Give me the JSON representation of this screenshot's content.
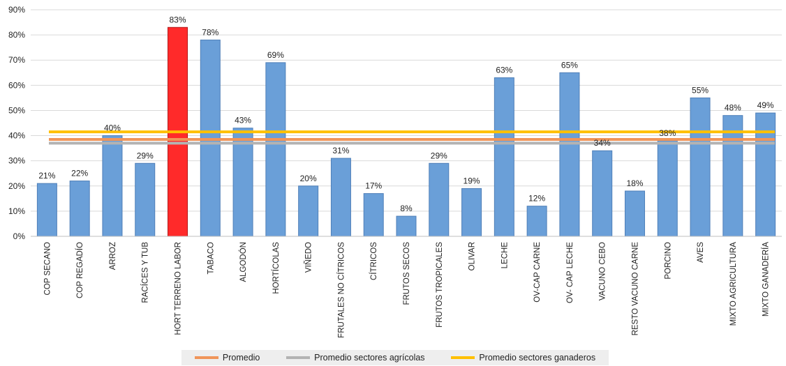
{
  "chart_data": {
    "type": "bar",
    "categories": [
      "COP SECANO",
      "COP REGADÍO",
      "ARROZ",
      "RACÍCES Y TUB",
      "HORT TERRENO LABOR",
      "TABACO",
      "ALGODÓN",
      "HORTÍCOLAS",
      "VIÑEDO",
      "FRUTALES NO CÍTRICOS",
      "CÍTRICOS",
      "FRUTOS SECOS",
      "FRUTOS TROPICALES",
      "OLIVAR",
      "LECHE",
      "OV-CAP CARNE",
      "OV- CAP LECHE",
      "VACUNO CEBO",
      "RESTO VACUNO CARNE",
      "PORCINO",
      "AVES",
      "MIXTO AGRICULTURA",
      "MIXTO GANADERÍA"
    ],
    "values": [
      21,
      22,
      40,
      29,
      83,
      78,
      43,
      69,
      20,
      31,
      17,
      8,
      29,
      19,
      63,
      12,
      65,
      34,
      18,
      38,
      55,
      48,
      49
    ],
    "data_labels": [
      "21%",
      "22%",
      "40%",
      "29%",
      "83%",
      "78%",
      "43%",
      "69%",
      "20%",
      "31%",
      "17%",
      "8%",
      "29%",
      "19%",
      "63%",
      "12%",
      "65%",
      "34%",
      "18%",
      "38%",
      "55%",
      "48%",
      "49%"
    ],
    "highlight_index": 4,
    "ylim": [
      0,
      90
    ],
    "yticks": [
      "0%",
      "10%",
      "20%",
      "30%",
      "40%",
      "50%",
      "60%",
      "70%",
      "80%",
      "90%"
    ],
    "grid": true,
    "bar_color": "#6a9fd8",
    "bar_edge_color": "#4f7fb8",
    "highlight_color": "#ff2a2a",
    "reference_lines": [
      {
        "name": "Promedio",
        "value": 38.5,
        "color": "#f0955a"
      },
      {
        "name": "Promedio sectores agrícolas",
        "value": 37,
        "color": "#b3b3b3"
      },
      {
        "name": "Promedio sectores ganaderos",
        "value": 41.5,
        "color": "#ffc000"
      }
    ],
    "legend_position": "bottom"
  },
  "legend": [
    {
      "label": "Promedio",
      "color": "#f0955a"
    },
    {
      "label": "Promedio sectores agrícolas",
      "color": "#b3b3b3"
    },
    {
      "label": "Promedio sectores ganaderos",
      "color": "#ffc000"
    }
  ]
}
